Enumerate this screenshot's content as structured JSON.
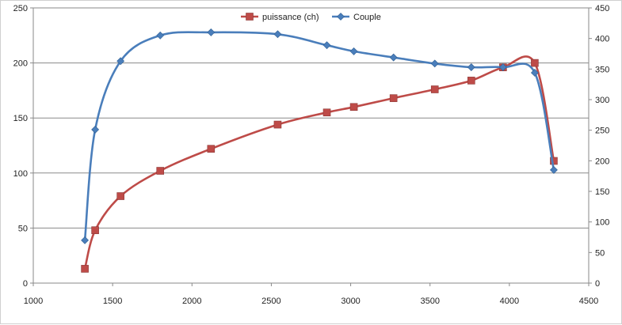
{
  "chart_data": {
    "type": "line",
    "smooth": true,
    "x_axis": {
      "range": [
        1000,
        4500
      ],
      "ticks": [
        1000,
        1500,
        2000,
        2500,
        3000,
        3500,
        4000,
        4500
      ]
    },
    "y_left": {
      "range": [
        0,
        250
      ],
      "ticks": [
        0,
        50,
        100,
        150,
        200,
        250
      ]
    },
    "y_right": {
      "range": [
        0,
        450
      ],
      "ticks": [
        0,
        50,
        100,
        150,
        200,
        250,
        300,
        350,
        400,
        450
      ]
    },
    "grid": {
      "horizontal": true,
      "vertical": false
    },
    "legend_position": "top-center",
    "series": [
      {
        "name": "puissance (ch)",
        "axis": "left",
        "color": "#be4b48",
        "marker": "square",
        "points": [
          [
            1325,
            13
          ],
          [
            1390,
            48
          ],
          [
            1550,
            79
          ],
          [
            1800,
            102
          ],
          [
            2120,
            122
          ],
          [
            2540,
            144
          ],
          [
            2850,
            155
          ],
          [
            3020,
            160
          ],
          [
            3270,
            168
          ],
          [
            3530,
            176
          ],
          [
            3760,
            184
          ],
          [
            3960,
            196
          ],
          [
            4160,
            200
          ],
          [
            4280,
            111
          ]
        ]
      },
      {
        "name": "Couple",
        "axis": "right",
        "color": "#4a7ebb",
        "marker": "diamond",
        "points": [
          [
            1325,
            70
          ],
          [
            1390,
            251
          ],
          [
            1550,
            363
          ],
          [
            1800,
            405
          ],
          [
            2120,
            410
          ],
          [
            2540,
            407
          ],
          [
            2850,
            389
          ],
          [
            3020,
            379
          ],
          [
            3270,
            369
          ],
          [
            3530,
            359
          ],
          [
            3760,
            353
          ],
          [
            3960,
            353
          ],
          [
            4160,
            344
          ],
          [
            4280,
            185
          ]
        ]
      }
    ]
  }
}
